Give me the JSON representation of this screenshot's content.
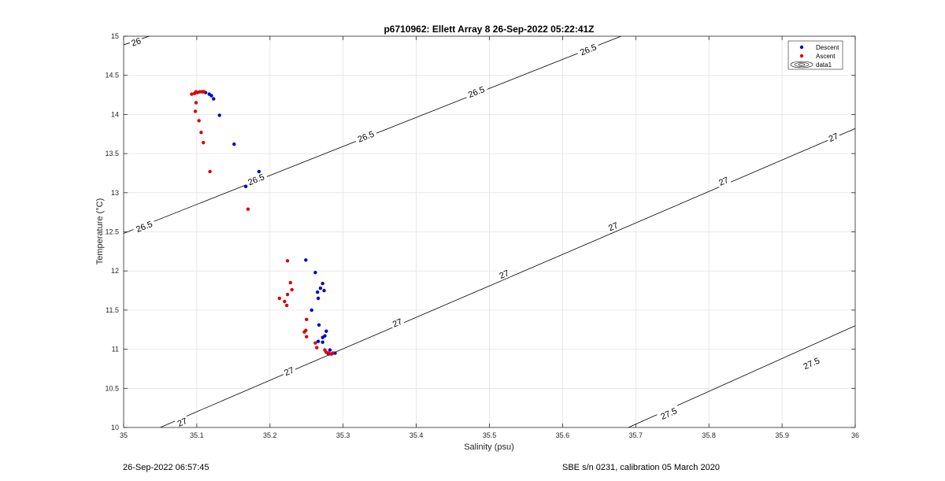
{
  "footer": {
    "left_text": "26-Sep-2022 06:57:45",
    "right_text": "SBE s/n 0231, calibration 05 March 2020"
  },
  "chart_data": {
    "type": "scatter",
    "title": "p6710962: Ellett Array 8 26-Sep-2022 05:22:41Z",
    "xlabel": "Salinity (psu)",
    "ylabel": "Temperature (°C)",
    "xlim": [
      35,
      36
    ],
    "ylim": [
      10,
      15
    ],
    "xticks": [
      "35",
      "35.1",
      "35.2",
      "35.3",
      "35.4",
      "35.5",
      "35.6",
      "35.7",
      "35.8",
      "35.9",
      "36"
    ],
    "yticks": [
      "10",
      "10.5",
      "11",
      "11.5",
      "12",
      "12.5",
      "13",
      "13.5",
      "14",
      "14.5",
      "15"
    ],
    "grid": true,
    "legend_position": "top-right",
    "legend": [
      "Descent",
      "Ascent",
      "data1"
    ],
    "colors": {
      "descent": "#0000cc",
      "ascent": "#dd0000",
      "contour": "#000000",
      "grid": "#e3e3e3"
    },
    "series": [
      {
        "name": "Descent",
        "points": [
          [
            35.107,
            14.29
          ],
          [
            35.112,
            14.28
          ],
          [
            35.117,
            14.26
          ],
          [
            35.12,
            14.24
          ],
          [
            35.123,
            14.2
          ],
          [
            35.131,
            13.99
          ],
          [
            35.151,
            13.62
          ],
          [
            35.185,
            13.27
          ],
          [
            35.167,
            13.08
          ],
          [
            35.249,
            12.14
          ],
          [
            35.262,
            11.98
          ],
          [
            35.272,
            11.84
          ],
          [
            35.269,
            11.78
          ],
          [
            35.274,
            11.75
          ],
          [
            35.265,
            11.73
          ],
          [
            35.266,
            11.65
          ],
          [
            35.257,
            11.5
          ],
          [
            35.267,
            11.31
          ],
          [
            35.277,
            11.23
          ],
          [
            35.275,
            11.17
          ],
          [
            35.272,
            11.15
          ],
          [
            35.266,
            11.1
          ],
          [
            35.272,
            11.09
          ],
          [
            35.282,
            10.99
          ],
          [
            35.286,
            10.95
          ],
          [
            35.289,
            10.95
          ],
          [
            35.284,
            10.94
          ],
          [
            35.28,
            10.94
          ]
        ]
      },
      {
        "name": "Ascent",
        "points": [
          [
            35.093,
            14.26
          ],
          [
            35.097,
            14.27
          ],
          [
            35.099,
            14.29
          ],
          [
            35.101,
            14.28
          ],
          [
            35.104,
            14.29
          ],
          [
            35.108,
            14.29
          ],
          [
            35.11,
            14.29
          ],
          [
            35.099,
            14.15
          ],
          [
            35.098,
            14.04
          ],
          [
            35.103,
            13.92
          ],
          [
            35.106,
            13.77
          ],
          [
            35.109,
            13.64
          ],
          [
            35.118,
            13.27
          ],
          [
            35.17,
            12.79
          ],
          [
            35.224,
            12.13
          ],
          [
            35.228,
            11.85
          ],
          [
            35.23,
            11.76
          ],
          [
            35.224,
            11.7
          ],
          [
            35.213,
            11.65
          ],
          [
            35.22,
            11.61
          ],
          [
            35.223,
            11.56
          ],
          [
            35.25,
            11.38
          ],
          [
            35.249,
            11.24
          ],
          [
            35.247,
            11.22
          ],
          [
            35.25,
            11.16
          ],
          [
            35.262,
            11.08
          ],
          [
            35.264,
            11.02
          ],
          [
            35.275,
            10.99
          ],
          [
            35.277,
            10.96
          ],
          [
            35.28,
            10.95
          ],
          [
            35.283,
            10.94
          ],
          [
            35.286,
            10.95
          ]
        ]
      }
    ],
    "contours": [
      {
        "level": "26",
        "x": [
          35.0,
          35.035
        ],
        "y": [
          14.89,
          15.0
        ],
        "labels": [
          [
            35.017,
            14.93
          ]
        ]
      },
      {
        "level": "26.5",
        "x": [
          35.0,
          35.68
        ],
        "y": [
          12.48,
          15.0
        ],
        "labels": [
          [
            35.028,
            12.57
          ],
          [
            35.181,
            13.17
          ],
          [
            35.331,
            13.72
          ],
          [
            35.482,
            14.29
          ],
          [
            35.635,
            14.83
          ]
        ]
      },
      {
        "level": "27",
        "x": [
          35.05,
          36.0
        ],
        "y": [
          10.0,
          13.82
        ],
        "labels": [
          [
            35.08,
            10.07
          ],
          [
            35.226,
            10.72
          ],
          [
            35.374,
            11.34
          ],
          [
            35.52,
            11.96
          ],
          [
            35.669,
            12.57
          ],
          [
            35.82,
            13.15
          ],
          [
            35.97,
            13.71
          ]
        ]
      },
      {
        "level": "27.5",
        "x": [
          35.69,
          36.0
        ],
        "y": [
          10.0,
          11.3
        ],
        "labels": [
          [
            35.745,
            10.18
          ],
          [
            35.94,
            10.82
          ]
        ]
      }
    ]
  }
}
